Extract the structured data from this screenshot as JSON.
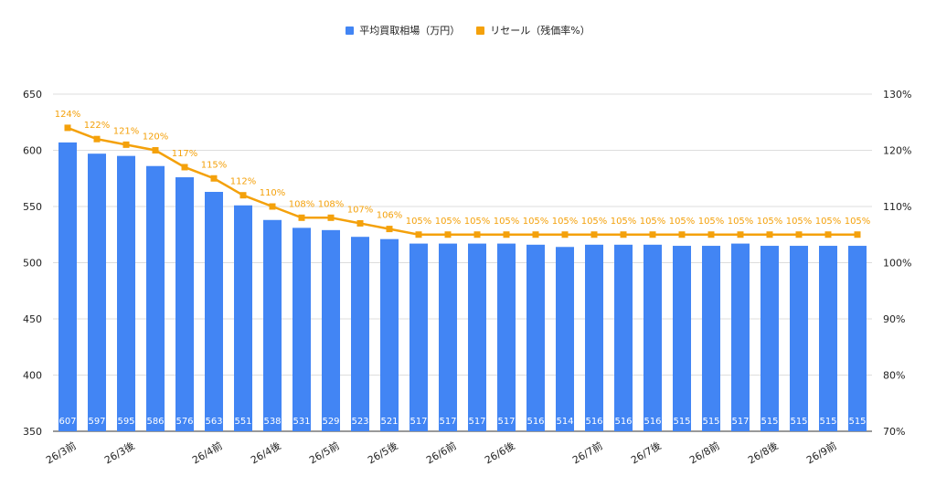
{
  "chart_data": {
    "type": "bar",
    "categories": [
      "26/3前",
      "",
      "26/3後",
      "",
      "",
      "26/4前",
      "",
      "26/4後",
      "",
      "26/5前",
      "",
      "26/5後",
      "",
      "26/6前",
      "",
      "26/6後",
      "",
      "",
      "26/7前",
      "",
      "26/7後",
      "",
      "26/8前",
      "",
      "26/8後",
      "",
      "26/9前",
      ""
    ],
    "series": [
      {
        "name": "平均買取相場（万円）",
        "type": "bar",
        "axis": "left",
        "color": "#4285F4",
        "values": [
          607,
          597,
          595,
          586,
          576,
          563,
          551,
          538,
          531,
          529,
          523,
          521,
          517,
          517,
          517,
          517,
          516,
          514,
          516,
          516,
          516,
          515,
          515,
          517,
          515,
          515,
          515,
          515
        ]
      },
      {
        "name": "リセール（残価率%）",
        "type": "line",
        "axis": "right",
        "color": "#F4A10B",
        "values": [
          124,
          122,
          121,
          120,
          117,
          115,
          112,
          110,
          108,
          108,
          107,
          106,
          105,
          105,
          105,
          105,
          105,
          105,
          105,
          105,
          105,
          105,
          105,
          105,
          105,
          105,
          105,
          105
        ],
        "value_labels": [
          "124%",
          "122%",
          "121%",
          "120%",
          "117%",
          "115%",
          "112%",
          "110%",
          "108%",
          "108%",
          "107%",
          "106%",
          "105%",
          "105%",
          "105%",
          "105%",
          "105%",
          "105%",
          "105%",
          "105%",
          "105%",
          "105%",
          "105%",
          "105%",
          "105%",
          "105%",
          "105%",
          "105%"
        ]
      }
    ],
    "left_axis": {
      "ticks": [
        350,
        400,
        450,
        500,
        550,
        600,
        650
      ],
      "tick_labels": [
        "350",
        "400",
        "450",
        "500",
        "550",
        "600",
        "650"
      ],
      "range": [
        350,
        650
      ]
    },
    "right_axis": {
      "ticks": [
        70,
        80,
        90,
        100,
        110,
        120,
        130
      ],
      "tick_labels": [
        "70%",
        "80%",
        "90%",
        "100%",
        "110%",
        "120%",
        "130%"
      ],
      "range": [
        70,
        130
      ]
    },
    "grid": true,
    "legend_position": "top-center"
  }
}
